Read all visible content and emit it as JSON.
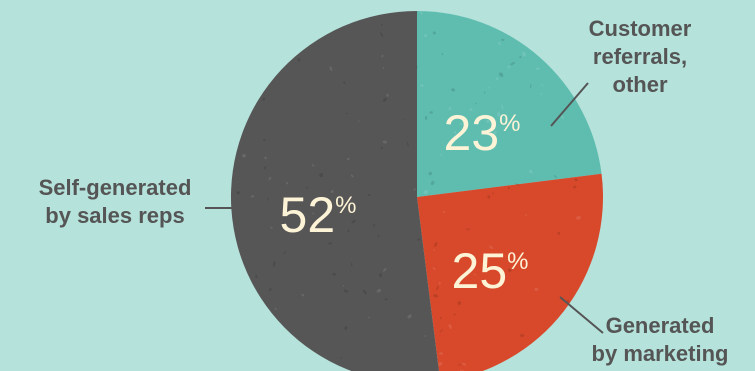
{
  "chart_data": {
    "type": "pie",
    "title": "",
    "slices": [
      {
        "key": "referrals",
        "label_lines": [
          "Customer",
          "referrals,",
          "other"
        ],
        "value": 23,
        "display": "23",
        "color": "#5fbdb0"
      },
      {
        "key": "marketing",
        "label_lines": [
          "Generated",
          "by marketing"
        ],
        "value": 25,
        "display": "25",
        "color": "#d8492b"
      },
      {
        "key": "self",
        "label_lines": [
          "Self-generated",
          "by sales reps"
        ],
        "value": 52,
        "display": "52",
        "color": "#575656"
      }
    ],
    "percent_symbol": "%",
    "legend": "none",
    "start_angle": "12 o'clock, clockwise"
  },
  "colors": {
    "background": "#b5e2db",
    "callout_text": "#555555",
    "percent_text": "#fdf3d6"
  }
}
